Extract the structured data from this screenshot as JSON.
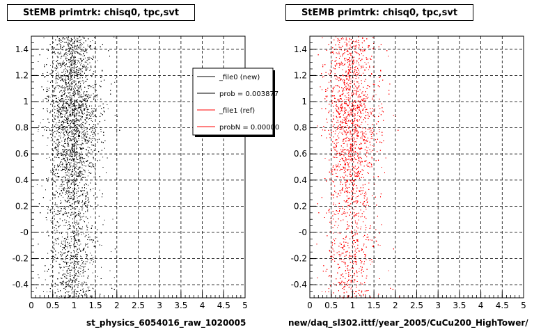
{
  "left_panel": {
    "title": "StEMB primtrk: chisq0, tpc,svt",
    "file_label": "st_physics_6054016_raw_1020005"
  },
  "right_panel": {
    "title": "StEMB primtrk: chisq0, tpc,svt",
    "file_label": "new/daq_sl302.ittf/year_2005/CuCu200_HighTower/"
  },
  "legend": {
    "entries": [
      {
        "label": "_file0 (new)",
        "color": "#000000"
      },
      {
        "label": "prob = 0.003877",
        "color": "#000000"
      },
      {
        "label": "_file1 (ref)",
        "color": "#ff0000"
      },
      {
        "label": "probN = 0.00000",
        "color": "#ff0000"
      }
    ]
  },
  "footer": "",
  "colors": {
    "new": "#000000",
    "ref": "#ff0000",
    "grid": "#000000"
  },
  "chart_data": [
    {
      "type": "scatter",
      "title": "StEMB primtrk: chisq0, tpc,svt",
      "xlabel": "st_physics_6054016_raw_1020005",
      "ylabel": "",
      "xlim": [
        0,
        5
      ],
      "ylim": [
        -0.5,
        1.5
      ],
      "xticks": [
        "0",
        "0.5",
        "1",
        "1.5",
        "2",
        "2.5",
        "3",
        "3.5",
        "4",
        "4.5",
        "5"
      ],
      "yticks": [
        "-0.4",
        "-0.2",
        "-0",
        "0.2",
        "0.4",
        "0.6",
        "0.8",
        "1",
        "1.2",
        "1.4"
      ],
      "grid": true,
      "series": [
        {
          "name": "_file0 (new)",
          "color": "#000000",
          "distribution": {
            "x_center": 0.95,
            "x_spread": 0.28,
            "y_range": [
              -0.5,
              1.5
            ],
            "density_peak_y": 0.9
          }
        }
      ]
    },
    {
      "type": "scatter",
      "title": "StEMB primtrk: chisq0, tpc,svt",
      "xlabel": "new/daq_sl302.ittf/year_2005/CuCu200_HighTower/",
      "ylabel": "",
      "xlim": [
        0,
        5
      ],
      "ylim": [
        -0.5,
        1.5
      ],
      "xticks": [
        "0",
        "0.5",
        "1",
        "1.5",
        "2",
        "2.5",
        "3",
        "3.5",
        "4",
        "4.5",
        "5"
      ],
      "yticks": [
        "-0.4",
        "-0.2",
        "-0",
        "0.2",
        "0.4",
        "0.6",
        "0.8",
        "1",
        "1.2",
        "1.4"
      ],
      "grid": true,
      "series": [
        {
          "name": "_file1 (ref)",
          "color": "#ff0000",
          "distribution": {
            "x_center": 0.95,
            "x_spread": 0.28,
            "y_range": [
              -0.5,
              1.5
            ],
            "density_peak_y": 0.9
          }
        }
      ]
    }
  ]
}
